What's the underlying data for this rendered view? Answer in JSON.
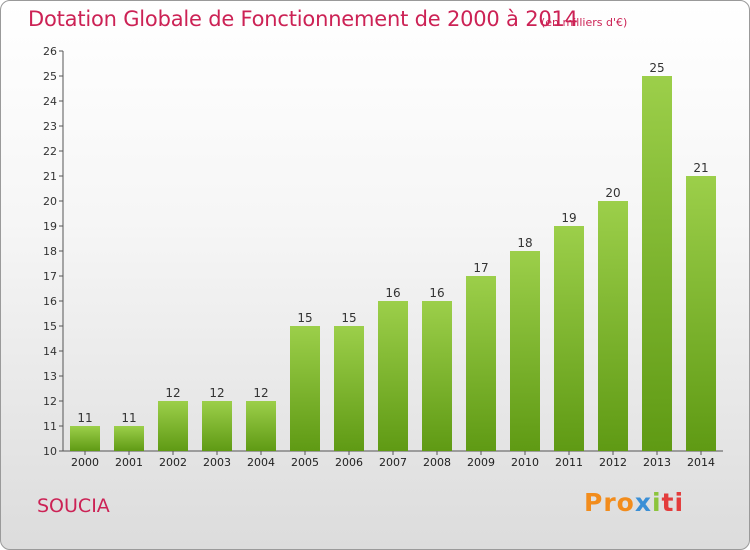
{
  "header": {
    "title": "Dotation Globale de Fonctionnement de 2000 à 2014",
    "subtitle": "(en milliers d'€)"
  },
  "footer": {
    "commune": "SOUCIA",
    "logo": [
      "Pro",
      "x",
      "i",
      "ti"
    ]
  },
  "colors": {
    "accent": "#cc2255",
    "bar_top": "#9ccf4a",
    "bar_bottom": "#5f9a14"
  },
  "chart_data": {
    "type": "bar",
    "title": "Dotation Globale de Fonctionnement de 2000 à 2014",
    "subtitle": "(en milliers d'€)",
    "categories": [
      "2000",
      "2001",
      "2002",
      "2003",
      "2004",
      "2005",
      "2006",
      "2007",
      "2008",
      "2009",
      "2010",
      "2011",
      "2012",
      "2013",
      "2014"
    ],
    "values": [
      11,
      11,
      12,
      12,
      12,
      15,
      15,
      16,
      16,
      17,
      18,
      19,
      20,
      25,
      21
    ],
    "ylim": [
      10,
      26
    ],
    "yticks": [
      10,
      11,
      12,
      13,
      14,
      15,
      16,
      17,
      18,
      19,
      20,
      21,
      22,
      23,
      24,
      25,
      26
    ],
    "grid": false,
    "data_labels": true
  }
}
